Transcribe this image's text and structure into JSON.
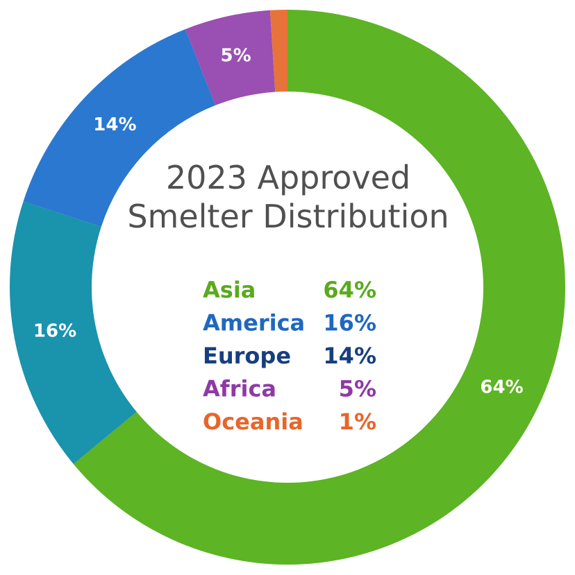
{
  "chart_data": {
    "type": "donut",
    "title": "2023 Approved Smelter Distribution",
    "categories": [
      "Asia",
      "America",
      "Europe",
      "Africa",
      "Oceania"
    ],
    "series": [
      {
        "values": [
          64,
          16,
          14,
          5,
          1
        ],
        "value_labels": [
          "64%",
          "16%",
          "14%",
          "5%",
          "1%"
        ],
        "colors": [
          "#5db424",
          "#1a93ad",
          "#2a78d0",
          "#9a4fb2",
          "#e8733a"
        ],
        "legend_colors": [
          "#5aaa1c",
          "#1f68c0",
          "#173f7e",
          "#8e3aa6",
          "#e8652a"
        ]
      }
    ]
  }
}
